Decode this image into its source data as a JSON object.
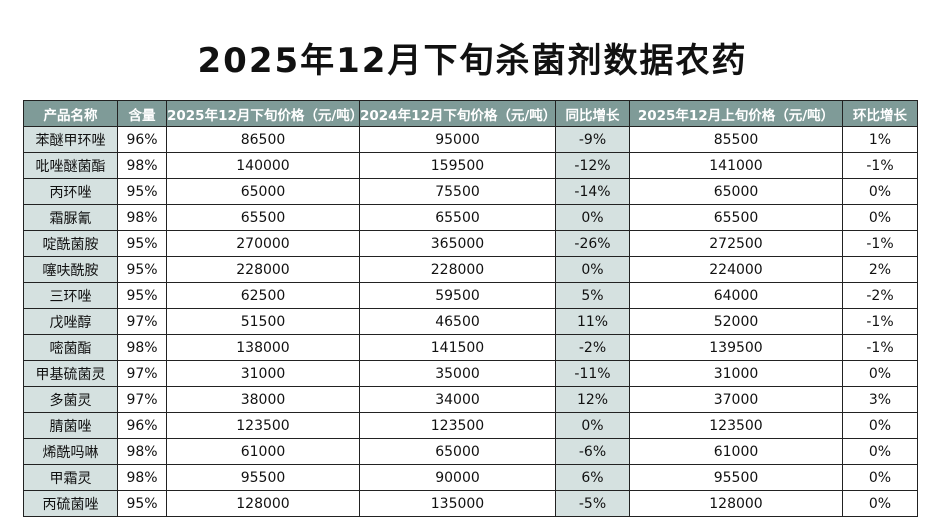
{
  "title": "2025年12月下旬杀菌剂数据农药",
  "columns": [
    "产品名称",
    "含量",
    "2025年12月下旬价格（元/吨）",
    "2024年12月下旬价格（元/吨）",
    "同比增长",
    "2025年12月上旬价格（元/吨）",
    "环比增长"
  ],
  "rows": [
    [
      "苯醚甲环唑",
      "96%",
      "86500",
      "95000",
      "-9%",
      "85500",
      "1%"
    ],
    [
      "吡唑醚菌酯",
      "98%",
      "140000",
      "159500",
      "-12%",
      "141000",
      "-1%"
    ],
    [
      "丙环唑",
      "95%",
      "65000",
      "75500",
      "-14%",
      "65000",
      "0%"
    ],
    [
      "霜脲氰",
      "98%",
      "65500",
      "65500",
      "0%",
      "65500",
      "0%"
    ],
    [
      "啶酰菌胺",
      "95%",
      "270000",
      "365000",
      "-26%",
      "272500",
      "-1%"
    ],
    [
      "噻呋酰胺",
      "95%",
      "228000",
      "228000",
      "0%",
      "224000",
      "2%"
    ],
    [
      "三环唑",
      "95%",
      "62500",
      "59500",
      "5%",
      "64000",
      "-2%"
    ],
    [
      "戊唑醇",
      "97%",
      "51500",
      "46500",
      "11%",
      "52000",
      "-1%"
    ],
    [
      "嘧菌酯",
      "98%",
      "138000",
      "141500",
      "-2%",
      "139500",
      "-1%"
    ],
    [
      "甲基硫菌灵",
      "97%",
      "31000",
      "35000",
      "-11%",
      "31000",
      "0%"
    ],
    [
      "多菌灵",
      "97%",
      "38000",
      "34000",
      "12%",
      "37000",
      "3%"
    ],
    [
      "腈菌唑",
      "96%",
      "123500",
      "123500",
      "0%",
      "123500",
      "0%"
    ],
    [
      "烯酰吗啉",
      "98%",
      "61000",
      "65000",
      "-6%",
      "61000",
      "0%"
    ],
    [
      "甲霜灵",
      "98%",
      "95500",
      "90000",
      "6%",
      "95500",
      "0%"
    ],
    [
      "丙硫菌唑",
      "95%",
      "128000",
      "135000",
      "-5%",
      "128000",
      "0%"
    ]
  ],
  "colors": {
    "header_bg": "#7f9b98",
    "header_text": "#ffffff",
    "shaded_cell": "#d5e1e0",
    "border": "#222222"
  }
}
